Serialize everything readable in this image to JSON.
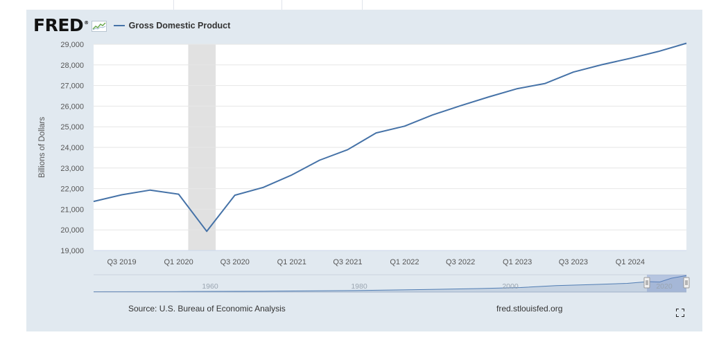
{
  "header": {
    "logo_text": "FRED",
    "logo_mark": "®",
    "series_name": "Gross Domestic Product"
  },
  "footer": {
    "source": "Source: U.S. Bureau of Economic Analysis",
    "url": "fred.stlouisfed.org"
  },
  "colors": {
    "panel_bg": "#e1e9f0",
    "series_line": "#4572a7",
    "recession": "#e1e1e1"
  },
  "icons": [
    "chart-thumbnail-icon",
    "fullscreen-icon"
  ],
  "chart_data": {
    "type": "line",
    "title": "Gross Domestic Product",
    "xlabel": "",
    "ylabel": "Billions of Dollars",
    "ylim": [
      19000,
      29000
    ],
    "yticks": [
      19000,
      20000,
      21000,
      22000,
      23000,
      24000,
      25000,
      26000,
      27000,
      28000,
      29000
    ],
    "ytick_labels": [
      "19,000",
      "20,000",
      "21,000",
      "22,000",
      "23,000",
      "24,000",
      "25,000",
      "26,000",
      "27,000",
      "28,000",
      "29,000"
    ],
    "xrange": [
      "2019-04-01",
      "2024-07-01"
    ],
    "xticks": [
      {
        "date": "2019-07-01",
        "label": "Q3 2019"
      },
      {
        "date": "2020-01-01",
        "label": "Q1 2020"
      },
      {
        "date": "2020-07-01",
        "label": "Q3 2020"
      },
      {
        "date": "2021-01-01",
        "label": "Q1 2021"
      },
      {
        "date": "2021-07-01",
        "label": "Q3 2021"
      },
      {
        "date": "2022-01-01",
        "label": "Q1 2022"
      },
      {
        "date": "2022-07-01",
        "label": "Q3 2022"
      },
      {
        "date": "2023-01-01",
        "label": "Q1 2023"
      },
      {
        "date": "2023-07-01",
        "label": "Q3 2023"
      },
      {
        "date": "2024-01-01",
        "label": "Q1 2024"
      }
    ],
    "recession": {
      "start": "2020-02-01",
      "end": "2020-04-30"
    },
    "series": [
      {
        "name": "Gross Domestic Product",
        "x": [
          "2019-04-01",
          "2019-07-01",
          "2019-10-01",
          "2020-01-01",
          "2020-04-01",
          "2020-07-01",
          "2020-10-01",
          "2021-01-01",
          "2021-04-01",
          "2021-07-01",
          "2021-10-01",
          "2022-01-01",
          "2022-04-01",
          "2022-07-01",
          "2022-10-01",
          "2023-01-01",
          "2023-04-01",
          "2023-07-01",
          "2023-10-01",
          "2024-01-01",
          "2024-04-01",
          "2024-07-01"
        ],
        "values": [
          21380,
          21700,
          21930,
          21730,
          19930,
          21680,
          22060,
          22660,
          23380,
          23890,
          24700,
          25030,
          25570,
          26020,
          26450,
          26850,
          27100,
          27650,
          28010,
          28320,
          28650,
          29050
        ]
      }
    ],
    "navigator": {
      "labels": [
        "1960",
        "1980",
        "2000",
        "2020"
      ]
    }
  }
}
